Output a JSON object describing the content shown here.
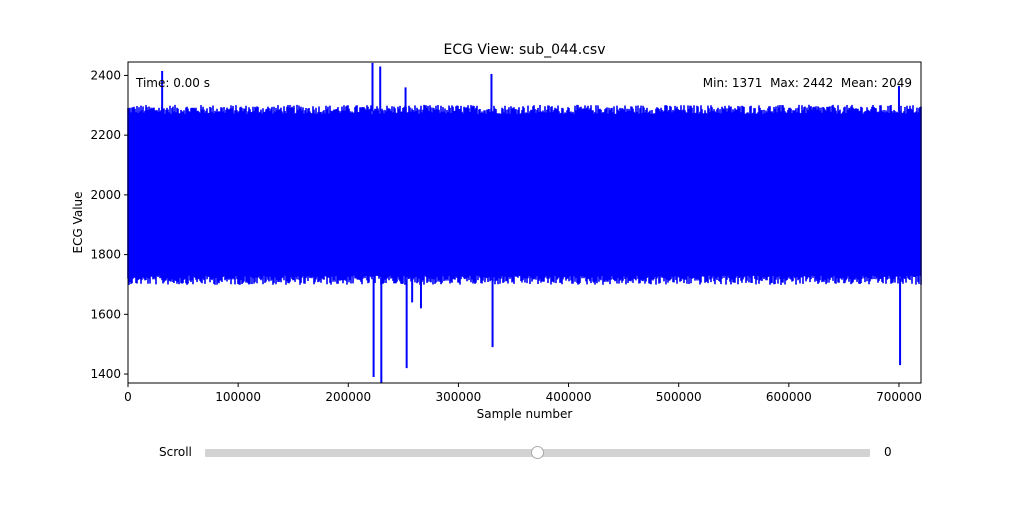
{
  "chart_data": {
    "type": "line",
    "title": "ECG View: sub_044.csv",
    "xlabel": "Sample number",
    "ylabel": "ECG Value",
    "xlim": [
      0,
      720000
    ],
    "ylim": [
      1370,
      2445
    ],
    "xticks": [
      0,
      100000,
      200000,
      300000,
      400000,
      500000,
      600000,
      700000
    ],
    "xtick_labels": [
      "0",
      "100000",
      "200000",
      "300000",
      "400000",
      "500000",
      "600000",
      "700000"
    ],
    "yticks": [
      1400,
      1600,
      1800,
      2000,
      2200,
      2400
    ],
    "ytick_labels": [
      "1400",
      "1600",
      "1800",
      "2000",
      "2200",
      "2400"
    ],
    "color": "#0000ff",
    "grid": false,
    "n_samples": 720000,
    "envelope": {
      "upper_typical": 2280,
      "lower_typical": 1720,
      "noise": 22
    },
    "spikes": [
      {
        "x": 31000,
        "y": 2415
      },
      {
        "x": 222000,
        "y": 2442
      },
      {
        "x": 223000,
        "y": 1390
      },
      {
        "x": 229000,
        "y": 2430
      },
      {
        "x": 230000,
        "y": 1371
      },
      {
        "x": 252000,
        "y": 2360
      },
      {
        "x": 253000,
        "y": 1420
      },
      {
        "x": 258000,
        "y": 1640
      },
      {
        "x": 266000,
        "y": 1620
      },
      {
        "x": 330000,
        "y": 2405
      },
      {
        "x": 331000,
        "y": 1490
      },
      {
        "x": 700000,
        "y": 2365
      },
      {
        "x": 701000,
        "y": 1430
      }
    ],
    "time_text": "Time: 0.00 s",
    "stats_text": "Min: 1371  Max: 2442  Mean: 2049",
    "stats": {
      "min": 1371,
      "max": 2442,
      "mean": 2049
    }
  },
  "slider": {
    "label": "Scroll",
    "value": "0",
    "position_fraction": 0.5
  }
}
